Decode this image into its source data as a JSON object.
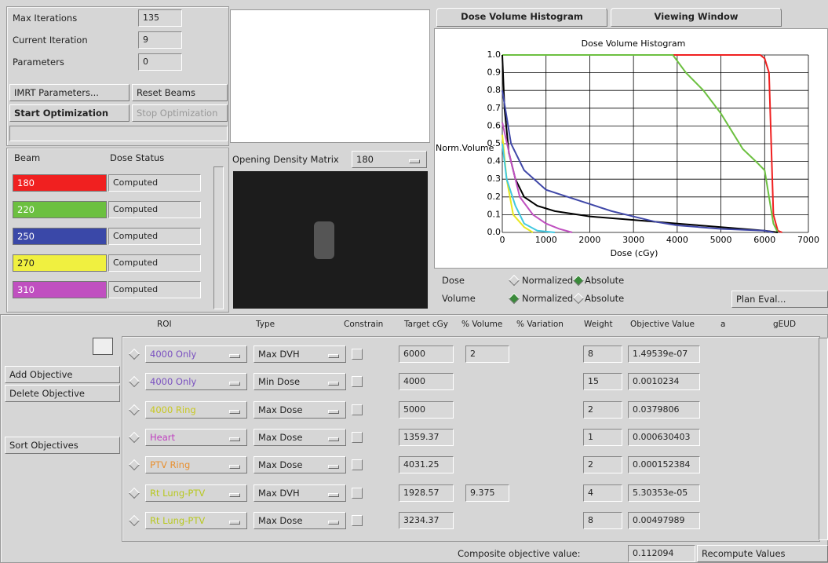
{
  "optimization": {
    "labels": [
      "Max Iterations",
      "Current Iteration",
      "Parameters"
    ],
    "values": [
      135,
      9,
      0
    ]
  },
  "buttons": {
    "imrt": "IMRT Parameters...",
    "reset": "Reset Beams",
    "start": "Start Optimization",
    "stop": "Stop Optimization"
  },
  "beams": {
    "headers": [
      "Beam",
      "Dose Status"
    ],
    "rows": [
      {
        "angle": 180,
        "color": "#f02020",
        "status": "Computed"
      },
      {
        "angle": 220,
        "color": "#6cc040",
        "status": "Computed"
      },
      {
        "angle": 250,
        "color": "#3a48a8",
        "status": "Computed"
      },
      {
        "angle": 270,
        "color": "#f0f040",
        "status": "Computed"
      },
      {
        "angle": 310,
        "color": "#c050c0",
        "status": "Computed"
      }
    ]
  },
  "density": {
    "label": "Opening Density Matrix",
    "selected": 180
  },
  "tabs": [
    "Dose Volume Histogram",
    "Viewing Window"
  ],
  "chart_data": {
    "type": "line",
    "title": "Dose Volume Histogram",
    "x_label": "Dose (cGy)",
    "y_label": "Norm.Volume",
    "xlim": [
      0,
      7000
    ],
    "xticks": [
      0,
      1000,
      2000,
      3000,
      4000,
      5000,
      6000,
      7000
    ],
    "ylim": [
      0,
      1
    ],
    "yticks": [
      {
        "value": 0,
        "label": "0.0"
      },
      0.1,
      0.2,
      0.3,
      0.4,
      0.5,
      0.6,
      0.7,
      0.8,
      0.9,
      {
        "value": 1,
        "label": "1.0"
      }
    ],
    "grid": true,
    "series": [
      {
        "color": "#f02020",
        "x": [
          0,
          5900,
          6000,
          6100,
          6150,
          6200,
          6300,
          6400
        ],
        "values": [
          1,
          1,
          0.98,
          0.9,
          0.5,
          0.1,
          0.01,
          0
        ]
      },
      {
        "color": "#6cc040",
        "x": [
          0,
          3900,
          4200,
          4600,
          5000,
          5300,
          5500,
          5800,
          6000,
          6100,
          6200,
          6300
        ],
        "values": [
          1,
          1,
          0.9,
          0.8,
          0.67,
          0.55,
          0.47,
          0.4,
          0.35,
          0.2,
          0.05,
          0
        ]
      },
      {
        "color": "#000000",
        "x": [
          0,
          50,
          150,
          300,
          500,
          800,
          1200,
          2000,
          3000,
          4000,
          5000,
          6000,
          6300
        ],
        "values": [
          1,
          0.7,
          0.45,
          0.3,
          0.2,
          0.15,
          0.12,
          0.09,
          0.07,
          0.05,
          0.03,
          0.01,
          0
        ]
      },
      {
        "color": "#4048a8",
        "x": [
          0,
          200,
          500,
          1000,
          1500,
          2000,
          2500,
          3000,
          3500,
          4000,
          5000,
          6000,
          6200
        ],
        "values": [
          0.8,
          0.5,
          0.35,
          0.24,
          0.2,
          0.16,
          0.12,
          0.09,
          0.06,
          0.04,
          0.02,
          0.01,
          0
        ]
      },
      {
        "color": "#c050c0",
        "x": [
          0,
          200,
          400,
          700,
          1000,
          1300,
          1600
        ],
        "values": [
          0.62,
          0.4,
          0.2,
          0.1,
          0.05,
          0.02,
          0
        ]
      },
      {
        "color": "#e8e820",
        "x": [
          0,
          100,
          250,
          500,
          700
        ],
        "values": [
          0.55,
          0.3,
          0.1,
          0.03,
          0
        ]
      },
      {
        "color": "#40c8e0",
        "x": [
          0,
          100,
          300,
          500,
          800,
          1200
        ],
        "values": [
          0.5,
          0.3,
          0.15,
          0.05,
          0.01,
          0
        ]
      }
    ]
  },
  "display": {
    "dose": "Dose",
    "volume": "Volume",
    "normalized": "Normalized",
    "absolute": "Absolute"
  },
  "plan_eval": "Plan Eval...",
  "objectives": {
    "headers": [
      "ROI",
      "Type",
      "Constrain",
      "Target cGy",
      "% Volume",
      "% Variation",
      "Weight",
      "Objective Value",
      "a",
      "gEUD"
    ],
    "side_buttons": [
      "Add Objective",
      "Delete Objective",
      "Sort Objectives"
    ],
    "rows": [
      {
        "roi": "4000 Only",
        "roi_color": "#7a50c0",
        "type": "Max DVH",
        "target": 6000,
        "volume": 2,
        "weight": 8,
        "objective": "1.49539e-07"
      },
      {
        "roi": "4000 Only",
        "roi_color": "#7a50c0",
        "type": "Min Dose",
        "target": 4000,
        "weight": 15,
        "objective": "0.0010234"
      },
      {
        "roi": "4000 Ring",
        "roi_color": "#c8c820",
        "type": "Max Dose",
        "target": 5000,
        "weight": 2,
        "objective": "0.0379806"
      },
      {
        "roi": "Heart",
        "roi_color": "#c040c0",
        "type": "Max Dose",
        "target": 1359.37,
        "weight": 1,
        "objective": "0.000630403"
      },
      {
        "roi": "PTV Ring",
        "roi_color": "#e89030",
        "type": "Max Dose",
        "target": 4031.25,
        "weight": 2,
        "objective": "0.000152384"
      },
      {
        "roi": "Rt Lung-PTV",
        "roi_color": "#b8c820",
        "type": "Max DVH",
        "target": 1928.57,
        "volume": 9.375,
        "weight": 4,
        "objective": "5.30353e-05"
      },
      {
        "roi": "Rt Lung-PTV",
        "roi_color": "#b8c820",
        "type": "Max Dose",
        "target": 3234.37,
        "weight": 8,
        "objective": "0.00497989"
      }
    ]
  },
  "composite": {
    "label": "Composite objective value:",
    "value": 0.112094
  },
  "recompute": "Recompute Values"
}
